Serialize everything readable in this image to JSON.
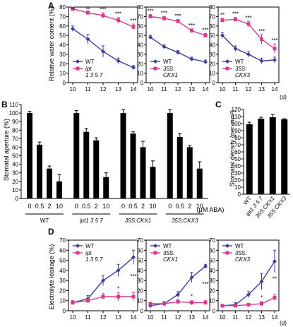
{
  "colors": {
    "wt": "#3b3f9e",
    "mutant": "#d63a8c",
    "bar": "#000000"
  },
  "panel_a": {
    "letter": "A",
    "ylabel": "Relative water content (%)",
    "xunit": "(d)",
    "chart_data": [
      {
        "type": "line",
        "x": [
          10,
          11,
          12,
          13,
          14
        ],
        "xlim": [
          10,
          14
        ],
        "ylim": [
          0,
          80
        ],
        "yticks": [
          0,
          10,
          20,
          30,
          40,
          50,
          60,
          70,
          80
        ],
        "series": [
          {
            "name": "WT",
            "values": [
              57,
              46,
              33,
              23,
              16
            ],
            "errors": [
              3,
              5,
              6,
              3,
              2
            ]
          },
          {
            "name": "ipt\n1 3 5 7",
            "values": [
              78,
              74,
              71,
              66,
              59
            ],
            "errors": [
              2,
              2,
              3,
              3,
              3
            ]
          }
        ],
        "legend": [
          {
            "text": "WT",
            "italic": false
          },
          {
            "text": "ipt",
            "italic": true
          },
          {
            "text": "1 3 5 7",
            "italic": true
          }
        ],
        "annotations": [
          "**",
          "**",
          "***",
          "***",
          "***"
        ]
      },
      {
        "type": "line",
        "x": [
          10,
          11,
          12,
          13,
          14
        ],
        "xlim": [
          10,
          14
        ],
        "ylim": [
          0,
          80
        ],
        "yticks": [
          0,
          10,
          20,
          30,
          40,
          50,
          60,
          70,
          80
        ],
        "series": [
          {
            "name": "WT",
            "values": [
              48,
              38,
              32,
              25,
              22
            ],
            "errors": [
              2,
              2,
              2,
              2,
              2
            ]
          },
          {
            "name": "35S:CKX1",
            "values": [
              70,
              68,
              65,
              55,
              50
            ],
            "errors": [
              2,
              2,
              2,
              2,
              2
            ]
          }
        ],
        "legend": [
          {
            "text": "WT",
            "italic": false
          },
          {
            "text": "35S:",
            "italic": true
          },
          {
            "text": "CKX1",
            "italic": true
          }
        ],
        "annotations": [
          "***",
          "***",
          "***",
          "***",
          "***"
        ]
      },
      {
        "type": "line",
        "x": [
          10,
          11,
          12,
          13,
          14
        ],
        "xlim": [
          10,
          14
        ],
        "ylim": [
          0,
          80
        ],
        "yticks": [
          0,
          10,
          20,
          30,
          40,
          50,
          60,
          70,
          80
        ],
        "series": [
          {
            "name": "WT",
            "values": [
              50,
              36,
              30,
              23,
              24
            ],
            "errors": [
              3,
              3,
              3,
              3,
              3
            ]
          },
          {
            "name": "35S:CKX3",
            "values": [
              66,
              67,
              62,
              46,
              36
            ],
            "errors": [
              2,
              2,
              3,
              5,
              5
            ]
          }
        ],
        "legend": [
          {
            "text": "WT",
            "italic": false
          },
          {
            "text": "35S:",
            "italic": true
          },
          {
            "text": "CKX3",
            "italic": true
          }
        ],
        "annotations": [
          "**",
          "***",
          "***",
          "***",
          "***"
        ]
      }
    ]
  },
  "panel_b": {
    "letter": "B",
    "chart_data": {
      "type": "bar",
      "ylabel": "Stomatal aperture (%)",
      "ylim": [
        0,
        110
      ],
      "yticks": [
        0,
        10,
        20,
        30,
        40,
        50,
        60,
        70,
        80,
        90,
        100,
        110
      ],
      "unit_label": "(μM ABA)",
      "concentrations": [
        "0",
        "0.5",
        "2",
        "10"
      ],
      "groups": [
        {
          "name": "WT",
          "italic": false,
          "values": [
            100,
            63,
            35,
            20
          ],
          "errors": [
            2,
            3,
            3,
            8
          ]
        },
        {
          "name": "ipt1 3 5 7",
          "italic": true,
          "values": [
            100,
            78,
            68,
            25
          ],
          "errors": [
            3,
            4,
            3,
            5
          ]
        },
        {
          "name": "35S:CKX1",
          "italic": true,
          "values": [
            100,
            76,
            60,
            37
          ],
          "errors": [
            4,
            2,
            7,
            7
          ]
        },
        {
          "name": "35S:CKX3",
          "italic": true,
          "values": [
            100,
            72,
            60,
            35
          ],
          "errors": [
            4,
            4,
            2,
            8
          ]
        }
      ]
    }
  },
  "panel_c": {
    "letter": "C",
    "chart_data": {
      "type": "bar",
      "ylabel": "Stomatal density (per mm²)",
      "ylim": [
        0,
        120
      ],
      "yticks": [
        0,
        10,
        20,
        30,
        40,
        50,
        60,
        70,
        80,
        90,
        100,
        110,
        120
      ],
      "categories": [
        "WT",
        "ipt1 3 5 7",
        "35S:CKX1",
        "35S:CKX3"
      ],
      "values": [
        99,
        107,
        109,
        106
      ],
      "errors": [
        3,
        2,
        4,
        1
      ]
    }
  },
  "panel_d": {
    "letter": "D",
    "ylabel": "Electrolyte leakage (%)",
    "xunit": "(d)",
    "chart_data": [
      {
        "type": "line",
        "x": [
          10,
          11,
          12,
          13,
          14
        ],
        "xlim": [
          10,
          14
        ],
        "ylim": [
          0,
          70
        ],
        "yticks": [
          0,
          10,
          20,
          30,
          40,
          50,
          60,
          70
        ],
        "series": [
          {
            "name": "WT",
            "values": [
              8,
              12,
              30,
              40,
              53
            ],
            "errors": [
              2,
              3,
              5,
              6,
              7
            ]
          },
          {
            "name": "ipt\n1 3 5 7",
            "values": [
              8,
              10,
              14,
              14,
              14
            ],
            "errors": [
              2,
              2,
              3,
              4,
              4
            ]
          }
        ],
        "legend": [
          {
            "text": "WT",
            "italic": false
          },
          {
            "text": "ipt",
            "italic": true
          },
          {
            "text": "1 3 5 7",
            "italic": true
          }
        ],
        "annotations": [
          "",
          "",
          "",
          "*",
          "***"
        ]
      },
      {
        "type": "line",
        "x": [
          10,
          11,
          12,
          13,
          14
        ],
        "xlim": [
          10,
          14
        ],
        "ylim": [
          0,
          70
        ],
        "yticks": [
          0,
          10,
          20,
          30,
          40,
          50,
          60,
          70
        ],
        "series": [
          {
            "name": "WT",
            "values": [
              5,
              7,
              16,
              33,
              44
            ],
            "errors": [
              1,
              2,
              3,
              5,
              2
            ]
          },
          {
            "name": "35S:CKX1",
            "values": [
              7,
              7,
              9,
              8,
              8
            ],
            "errors": [
              1,
              1,
              2,
              2,
              2
            ]
          }
        ],
        "legend": [
          {
            "text": "WT",
            "italic": false
          },
          {
            "text": "35S:",
            "italic": true
          },
          {
            "text": "CKX1",
            "italic": true
          }
        ],
        "annotations": [
          "",
          "",
          "",
          "*",
          "***"
        ]
      },
      {
        "type": "line",
        "x": [
          10,
          11,
          12,
          13,
          14
        ],
        "xlim": [
          10,
          14
        ],
        "ylim": [
          0,
          70
        ],
        "yticks": [
          0,
          10,
          20,
          30,
          40,
          50,
          60,
          70
        ],
        "series": [
          {
            "name": "WT",
            "values": [
              5,
              6,
              16,
              29,
              49
            ],
            "errors": [
              1,
              2,
              3,
              8,
              11
            ]
          },
          {
            "name": "35S:CKX3",
            "values": [
              5,
              5,
              6,
              7,
              13
            ],
            "errors": [
              1,
              1,
              1,
              2,
              3
            ]
          }
        ],
        "legend": [
          {
            "text": "WT",
            "italic": false
          },
          {
            "text": "35S:",
            "italic": true
          },
          {
            "text": "CKX3",
            "italic": true
          }
        ],
        "annotations": [
          "",
          "",
          "",
          "*",
          "**"
        ]
      }
    ]
  }
}
